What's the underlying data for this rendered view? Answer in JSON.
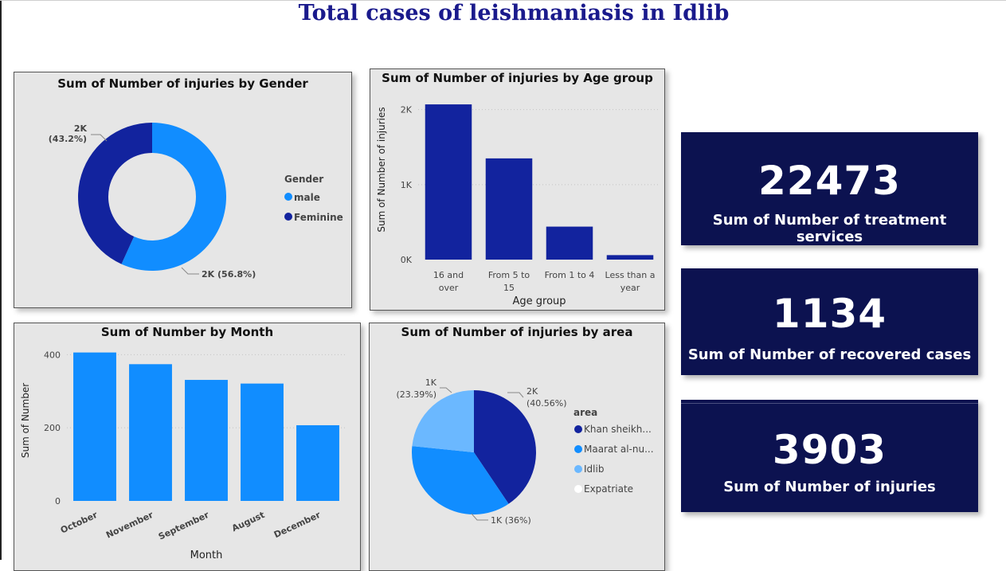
{
  "title": "Total cases of leishmaniasis in Idlib",
  "kpis": [
    {
      "value": "22473",
      "label": "Sum of Number of treatment services"
    },
    {
      "value": "1134",
      "label": "Sum of Number of recovered cases"
    },
    {
      "value": "3903",
      "label": "Sum of Number of injuries"
    }
  ],
  "colors": {
    "dark": "#12239e",
    "medium": "#118dff",
    "light": "#6bb8ff",
    "white": "#ffffff",
    "kpi_bg": "#0c1250"
  },
  "chart_data": [
    {
      "type": "pie",
      "variant": "donut",
      "title": "Sum of Number of injuries by Gender",
      "legend_title": "Gender",
      "legend_position": "right",
      "slices": [
        {
          "name": "male",
          "value": 56.8,
          "label": "2K (56.8%)",
          "color": "#118dff"
        },
        {
          "name": "Feminine",
          "value": 43.2,
          "label_top": "2K",
          "label_bottom": "(43.2%)",
          "color": "#12239e"
        }
      ]
    },
    {
      "type": "bar",
      "title": "Sum of Number of injuries by Age group",
      "xlabel": "Age group",
      "ylabel": "Sum of Number of injuries",
      "categories": [
        [
          "16 and",
          "over"
        ],
        [
          "From 5 to",
          "15"
        ],
        [
          "From 1 to 4"
        ],
        [
          "Less than a",
          "year"
        ]
      ],
      "values": [
        2070,
        1350,
        440,
        60
      ],
      "ylim": [
        0,
        2400
      ],
      "yticks": [
        0,
        1000,
        2000
      ],
      "yticklabels": [
        "0K",
        "1K",
        "2K"
      ],
      "grid": true,
      "color": "#12239e"
    },
    {
      "type": "bar",
      "title": "Sum of Number by Month",
      "xlabel": "Month",
      "ylabel": "Sum of Number",
      "categories": [
        "October",
        "November",
        "September",
        "August",
        "December"
      ],
      "values": [
        406,
        374,
        331,
        321,
        207
      ],
      "ylim": [
        0,
        440
      ],
      "yticks": [
        0,
        200,
        400
      ],
      "yticklabels": [
        "0",
        "200",
        "400"
      ],
      "grid": true,
      "color": "#118dff"
    },
    {
      "type": "pie",
      "title": "Sum of Number of injuries by area",
      "legend_title": "area",
      "legend_position": "right",
      "slices": [
        {
          "name": "Khan sheikh...",
          "value": 40.56,
          "label_top": "2K",
          "label_bottom": "(40.56%)",
          "color": "#12239e"
        },
        {
          "name": "Maarat al-nu...",
          "value": 36.05,
          "label": "1K (36%)",
          "color": "#118dff"
        },
        {
          "name": "Idlib",
          "value": 23.39,
          "label_top": "1K",
          "label_bottom": "(23.39%)",
          "color": "#6bb8ff"
        },
        {
          "name": "Expatriate",
          "value": 0,
          "color": "#ffffff"
        }
      ]
    }
  ]
}
